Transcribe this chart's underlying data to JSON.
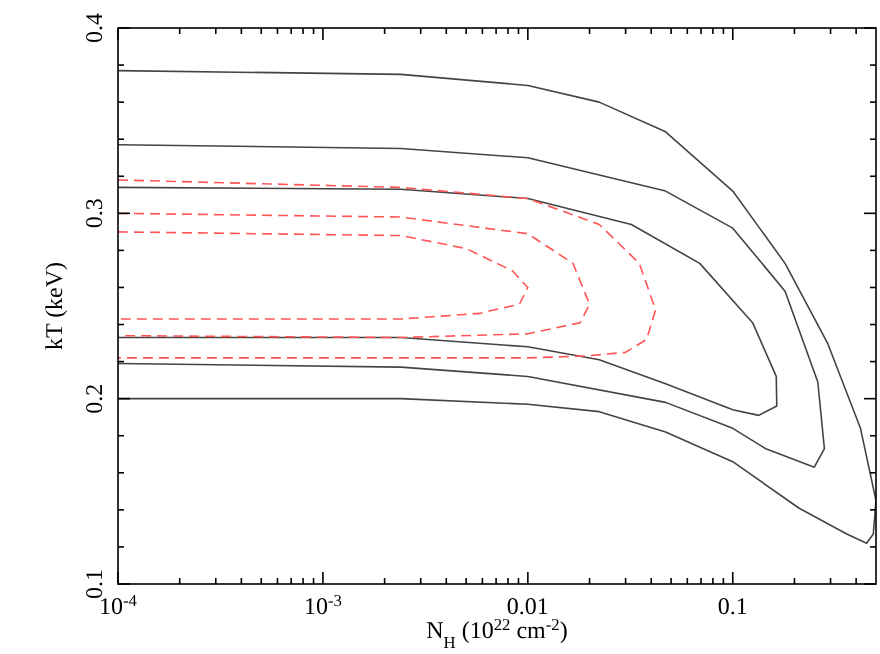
{
  "chart_data": {
    "type": "line",
    "xlabel": "N$_{H}$ (10$^{22}$ cm$^{-2}$)",
    "ylabel": "kT (keV)",
    "log": "x",
    "grid": false,
    "xlim": [
      0.0001,
      0.5
    ],
    "xticks": [
      {
        "value": 0.0001,
        "label": "10$^{-4}$"
      },
      {
        "value": 0.0002,
        "label": null
      },
      {
        "value": 0.0003,
        "label": null
      },
      {
        "value": 0.0004,
        "label": null
      },
      {
        "value": 0.0005,
        "label": null
      },
      {
        "value": 0.0006,
        "label": null
      },
      {
        "value": 0.0007,
        "label": null
      },
      {
        "value": 0.0008,
        "label": null
      },
      {
        "value": 0.0009,
        "label": null
      },
      {
        "value": 0.001,
        "label": "10$^{-3}$"
      },
      {
        "value": 0.002,
        "label": null
      },
      {
        "value": 0.003,
        "label": null
      },
      {
        "value": 0.004,
        "label": null
      },
      {
        "value": 0.005,
        "label": null
      },
      {
        "value": 0.006,
        "label": null
      },
      {
        "value": 0.007,
        "label": null
      },
      {
        "value": 0.008,
        "label": null
      },
      {
        "value": 0.009,
        "label": null
      },
      0.01,
      {
        "value": 0.02,
        "label": null
      },
      {
        "value": 0.03,
        "label": null
      },
      {
        "value": 0.04,
        "label": null
      },
      {
        "value": 0.05,
        "label": null
      },
      {
        "value": 0.06,
        "label": null
      },
      {
        "value": 0.07,
        "label": null
      },
      {
        "value": 0.08,
        "label": null
      },
      {
        "value": 0.09,
        "label": null
      },
      0.1,
      {
        "value": 0.2,
        "label": null
      },
      {
        "value": 0.3,
        "label": null
      },
      {
        "value": 0.4,
        "label": null
      }
    ],
    "ylim": [
      0.1,
      0.4
    ],
    "yticks": [
      0.1,
      {
        "value": 0.12,
        "label": null
      },
      {
        "value": 0.14,
        "label": null
      },
      {
        "value": 0.16,
        "label": null
      },
      {
        "value": 0.18,
        "label": null
      },
      0.2,
      {
        "value": 0.22,
        "label": null
      },
      {
        "value": 0.24,
        "label": null
      },
      {
        "value": 0.26,
        "label": null
      },
      {
        "value": 0.28,
        "label": null
      },
      0.3,
      {
        "value": 0.32,
        "label": null
      },
      {
        "value": 0.34,
        "label": null
      },
      {
        "value": 0.36,
        "label": null
      },
      {
        "value": 0.38,
        "label": null
      },
      0.4
    ],
    "series": [
      {
        "color": "#444444",
        "line_style": "solid",
        "x": [
          0.0001,
          0.0024,
          0.01,
          0.0223,
          0.047,
          0.1,
          0.18,
          0.29,
          0.42,
          0.5,
          0.485,
          0.45,
          0.36,
          0.21,
          0.1,
          0.047,
          0.0223,
          0.01,
          0.0024,
          0.0001
        ],
        "values": [
          0.377,
          0.375,
          0.369,
          0.36,
          0.344,
          0.312,
          0.273,
          0.23,
          0.184,
          0.145,
          0.127,
          0.122,
          0.127,
          0.141,
          0.166,
          0.182,
          0.193,
          0.197,
          0.2,
          0.2
        ]
      },
      {
        "color": "#444444",
        "line_style": "solid",
        "x": [
          0.0001,
          0.0024,
          0.01,
          0.047,
          0.1,
          0.18,
          0.26,
          0.28,
          0.25,
          0.145,
          0.1,
          0.047,
          0.01,
          0.0024,
          0.0001
        ],
        "values": [
          0.337,
          0.335,
          0.33,
          0.312,
          0.292,
          0.258,
          0.209,
          0.173,
          0.163,
          0.173,
          0.184,
          0.198,
          0.212,
          0.217,
          0.219
        ]
      },
      {
        "color": "#444444",
        "line_style": "solid",
        "x": [
          0.0001,
          0.0024,
          0.01,
          0.032,
          0.069,
          0.125,
          0.163,
          0.164,
          0.134,
          0.1,
          0.047,
          0.0223,
          0.01,
          0.0024,
          0.0001
        ],
        "values": [
          0.314,
          0.313,
          0.308,
          0.294,
          0.273,
          0.241,
          0.212,
          0.196,
          0.191,
          0.194,
          0.208,
          0.221,
          0.228,
          0.233,
          0.233
        ]
      },
      {
        "color": "#ff5555",
        "line_style": "dashed",
        "x": [
          0.0001,
          0.0024,
          0.01,
          0.0223,
          0.035,
          0.042,
          0.038,
          0.03,
          0.019,
          0.01,
          0.0001
        ],
        "values": [
          0.318,
          0.314,
          0.308,
          0.294,
          0.273,
          0.248,
          0.232,
          0.225,
          0.223,
          0.222,
          0.222
        ]
      },
      {
        "color": "#ff5555",
        "line_style": "dashed",
        "x": [
          0.0001,
          0.0024,
          0.01,
          0.0166,
          0.02,
          0.018,
          0.01,
          0.0024,
          0.0001
        ],
        "values": [
          0.3,
          0.298,
          0.289,
          0.273,
          0.251,
          0.241,
          0.235,
          0.233,
          0.234
        ]
      },
      {
        "color": "#ff5555",
        "line_style": "dashed",
        "x": [
          0.0001,
          0.0024,
          0.005,
          0.0084,
          0.01,
          0.0091,
          0.0058,
          0.0024,
          0.0001
        ],
        "values": [
          0.29,
          0.288,
          0.281,
          0.269,
          0.26,
          0.251,
          0.246,
          0.243,
          0.243
        ]
      }
    ]
  }
}
